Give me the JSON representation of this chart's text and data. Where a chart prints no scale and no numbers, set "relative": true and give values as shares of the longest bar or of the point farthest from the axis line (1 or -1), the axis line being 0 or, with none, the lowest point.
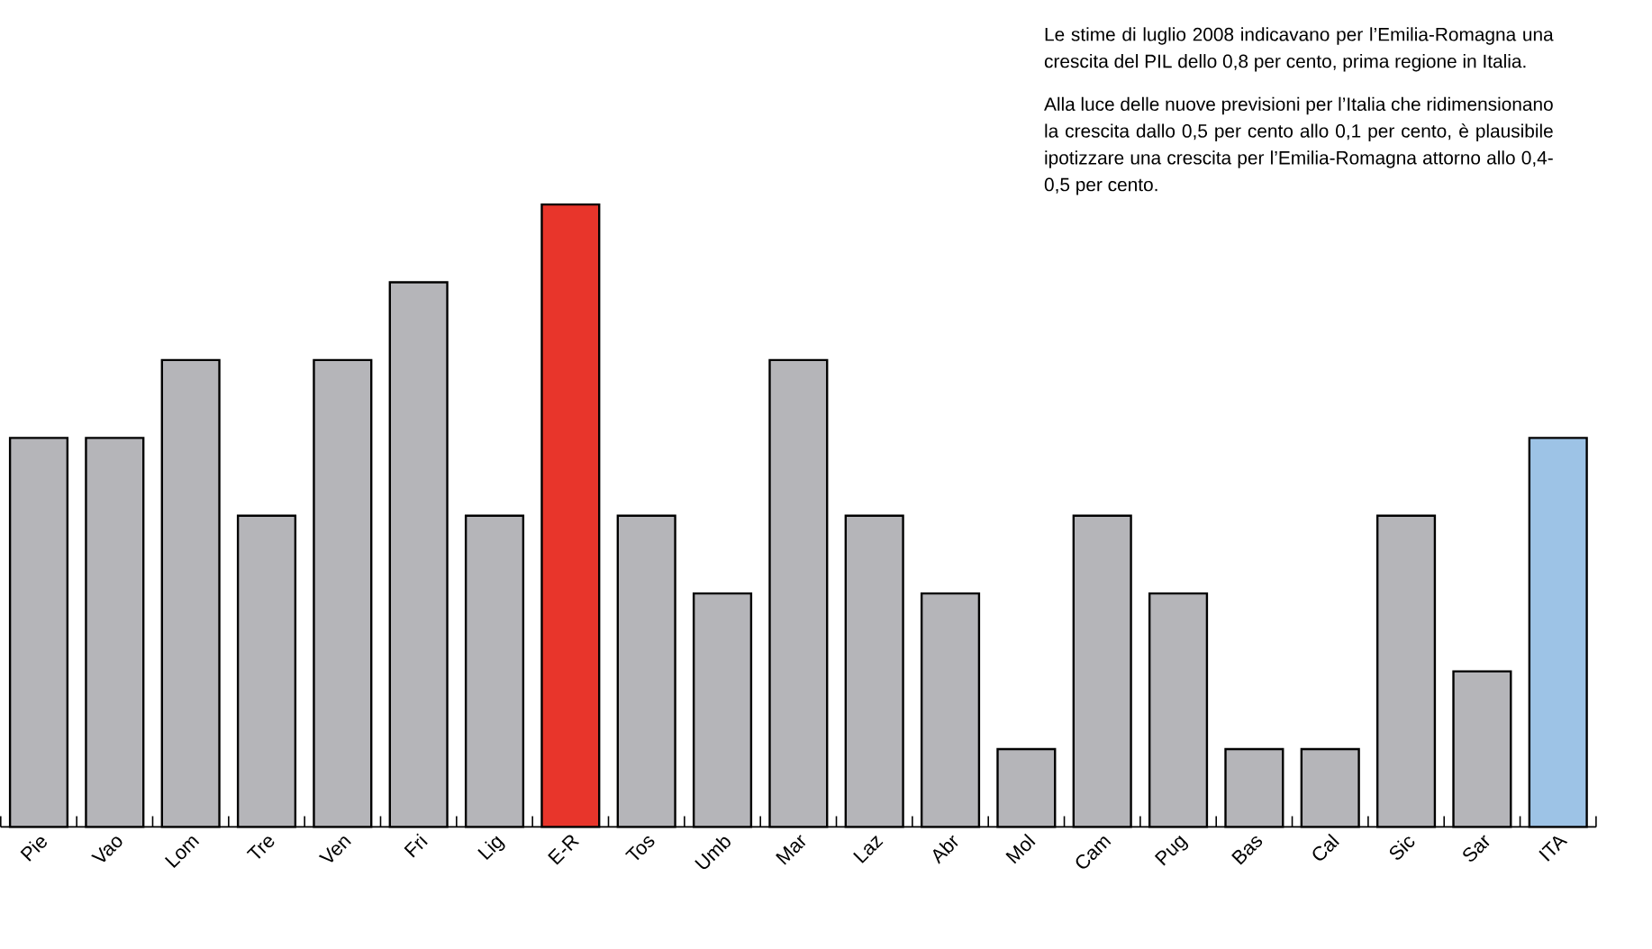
{
  "chart_data": {
    "type": "bar",
    "relative": true,
    "categories": [
      "Pie",
      "Vao",
      "Lom",
      "Tre",
      "Ven",
      "Fri",
      "Lig",
      "E-R",
      "Tos",
      "Umb",
      "Mar",
      "Laz",
      "Abr",
      "Mol",
      "Cam",
      "Pug",
      "Bas",
      "Cal",
      "Sic",
      "Sar",
      "ITA"
    ],
    "values": [
      0.625,
      0.625,
      0.75,
      0.5,
      0.75,
      0.875,
      0.5,
      1,
      0.5,
      0.375,
      0.75,
      0.5,
      0.375,
      0.125,
      0.5,
      0.375,
      0.125,
      0.125,
      0.5,
      0.25,
      0.625
    ],
    "colors": [
      "#b5b5b9",
      "#b5b5b9",
      "#b5b5b9",
      "#b5b5b9",
      "#b5b5b9",
      "#b5b5b9",
      "#b5b5b9",
      "#e8352b",
      "#b5b5b9",
      "#b5b5b9",
      "#b5b5b9",
      "#b5b5b9",
      "#b5b5b9",
      "#b5b5b9",
      "#b5b5b9",
      "#b5b5b9",
      "#b5b5b9",
      "#b5b5b9",
      "#b5b5b9",
      "#b5b5b9",
      "#9dc3e6"
    ],
    "annotations": [
      "Le stime di luglio 2008 indicavano per l’Emilia-Romagna una crescita del PIL dello 0,8 per cento, prima regione in Italia.",
      "Alla luce delle nuove previsioni per l’Italia che ridimensionano la crescita dallo 0,5 per cento allo 0,1 per cento, è plausibile ipotizzare una crescita per l’Emilia-Romagna attorno allo 0,4-0,5 per cento."
    ]
  }
}
